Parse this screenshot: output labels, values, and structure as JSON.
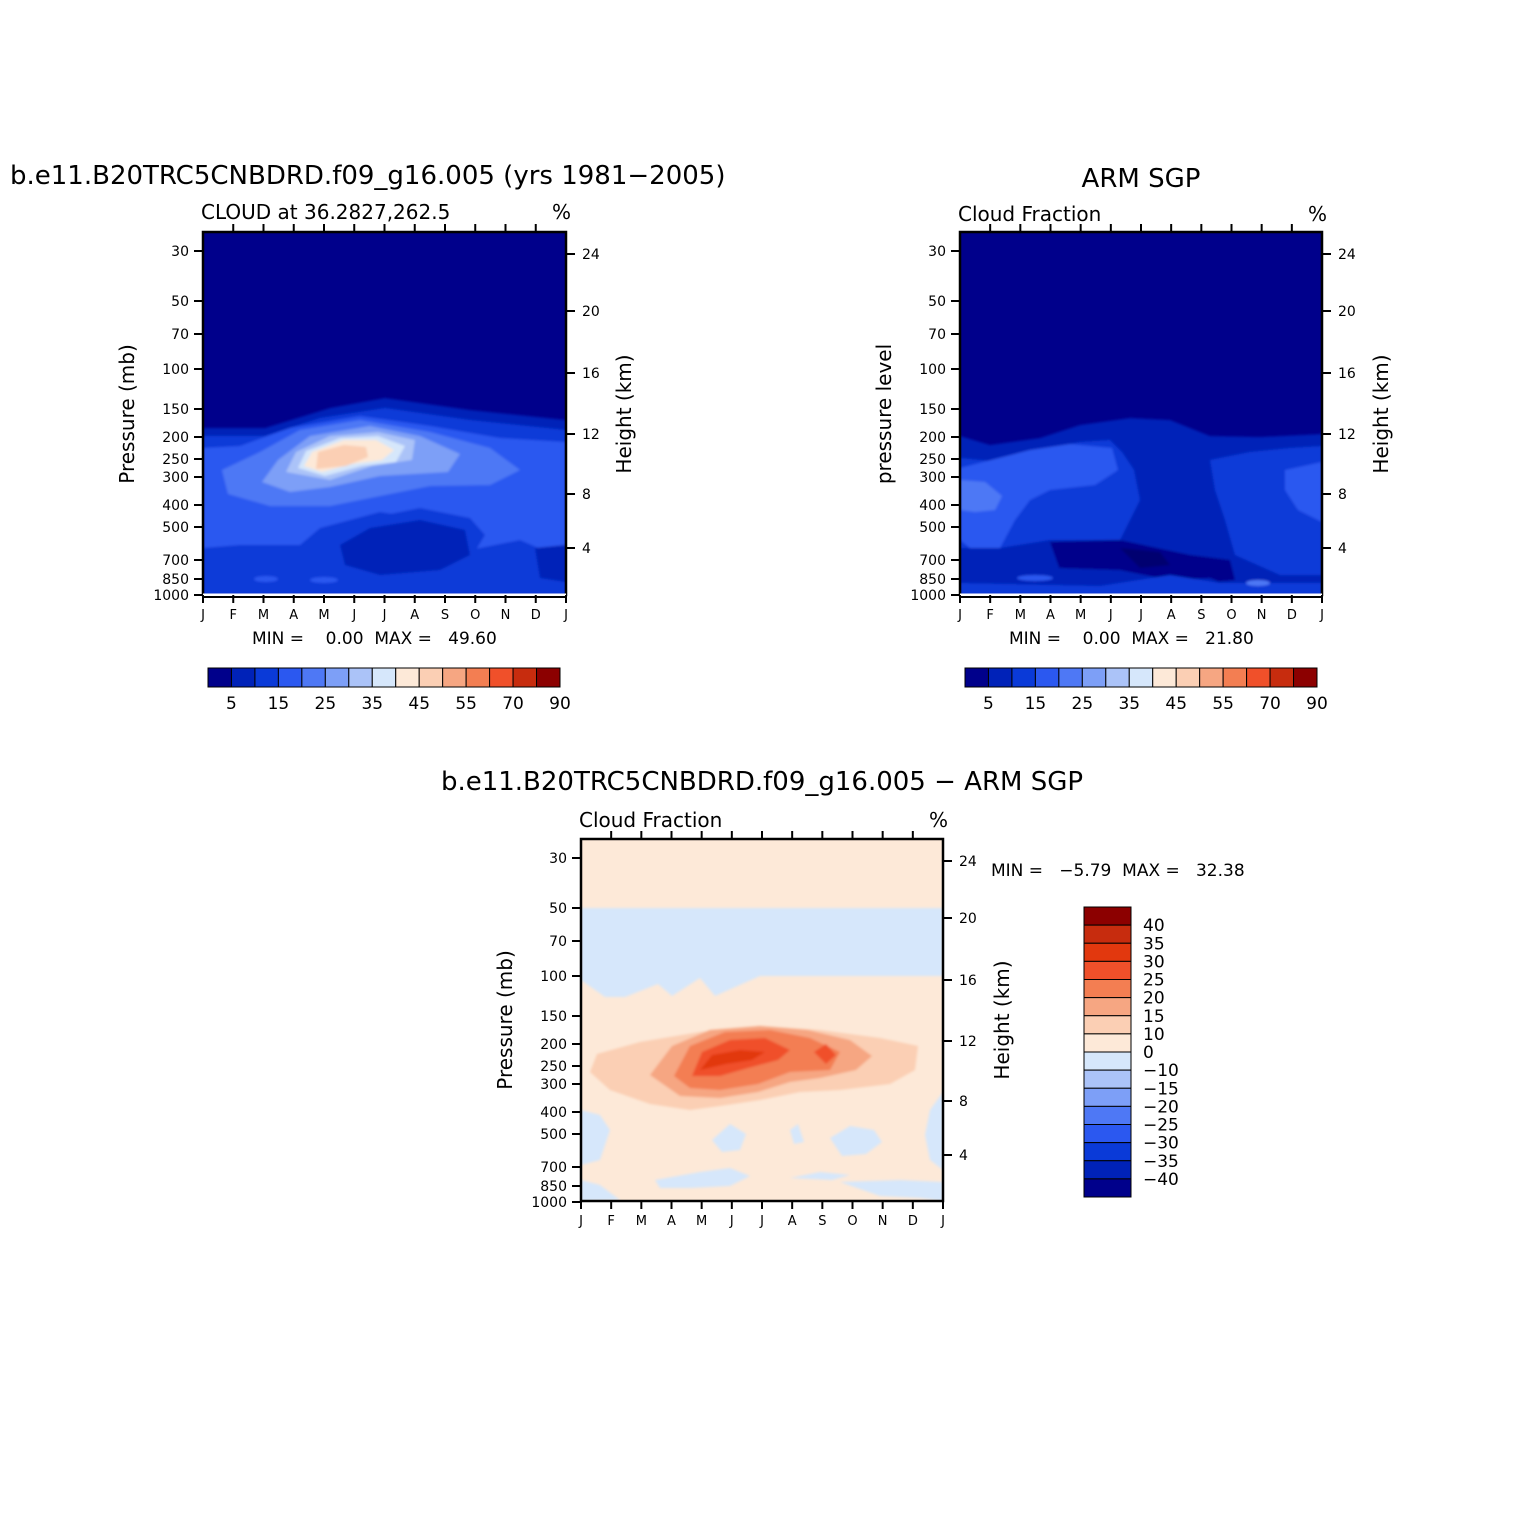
{
  "panels": [
    {
      "id": "model",
      "main_title": "b.e11.B20TRC5CNBDRD.f09_g16.005 (yrs 1981−2005)",
      "sub_left": "CLOUD at 36.2827,262.5",
      "sub_right": "%",
      "ylabel": "Pressure (mb)",
      "ylabel_right": "Height (km)",
      "stats": "MIN =    0.00  MAX =   49.60"
    },
    {
      "id": "obs",
      "main_title": "ARM SGP",
      "sub_left": "Cloud Fraction",
      "sub_right": "%",
      "ylabel": "pressure level",
      "ylabel_right": "Height (km)",
      "stats": "MIN =    0.00  MAX =   21.80"
    },
    {
      "id": "diff",
      "main_title": "b.e11.B20TRC5CNBDRD.f09_g16.005 − ARM SGP",
      "sub_left": "Cloud Fraction",
      "sub_right": "%",
      "ylabel": "Pressure (mb)",
      "ylabel_right": "Height (km)",
      "stats": "MIN =   −5.79  MAX =   32.38"
    }
  ],
  "axes": {
    "months": [
      "J",
      "F",
      "M",
      "A",
      "M",
      "J",
      "J",
      "A",
      "S",
      "O",
      "N",
      "D",
      "J"
    ],
    "pressure_ticks": [
      "30",
      "50",
      "70",
      "100",
      "150",
      "200",
      "250",
      "300",
      "400",
      "500",
      "700",
      "850",
      "1000"
    ],
    "height_ticks": [
      "24",
      "20",
      "16",
      "12",
      "8",
      "4"
    ]
  },
  "colorbars": {
    "cloud": {
      "labels": [
        "5",
        "15",
        "25",
        "35",
        "45",
        "55",
        "70",
        "90"
      ],
      "colors": [
        "#00008b",
        "#0022b8",
        "#0a3ad8",
        "#2b58f0",
        "#4e78f5",
        "#7d9ff7",
        "#abc3f8",
        "#d6e7fb",
        "#fde9d8",
        "#fbcfb4",
        "#f6a682",
        "#f37e52",
        "#f0502a",
        "#c72c0e",
        "#8c0000"
      ]
    },
    "diff": {
      "labels": [
        "40",
        "35",
        "30",
        "25",
        "20",
        "15",
        "10",
        "0",
        "−10",
        "−15",
        "−20",
        "−25",
        "−30",
        "−35",
        "−40"
      ],
      "colors": [
        "#8c0000",
        "#c72c0e",
        "#e2380e",
        "#f0502a",
        "#f37e52",
        "#f6a682",
        "#fbcfb4",
        "#fde9d8",
        "#d6e7fb",
        "#abc3f8",
        "#7d9ff7",
        "#4e78f5",
        "#2b58f0",
        "#0a3ad8",
        "#0022b8",
        "#00008b"
      ]
    }
  },
  "chart_data": [
    {
      "type": "heatmap",
      "title": "b.e11.B20TRC5CNBDRD.f09_g16.005 (yrs 1981−2005)",
      "subtitle": "CLOUD at 36.2827,262.5",
      "units": "%",
      "xlabel": "",
      "ylabel": "Pressure (mb)",
      "y_scale": "log",
      "x_categories": [
        "J",
        "F",
        "M",
        "A",
        "M",
        "J",
        "J",
        "A",
        "S",
        "O",
        "N",
        "D",
        "J"
      ],
      "min": 0.0,
      "max": 49.6,
      "description_values": {
        "peak_value_approx": 49.6,
        "peak_location": {
          "month": "May-Jun",
          "pressure_mb": 250
        }
      }
    },
    {
      "type": "heatmap",
      "title": "ARM SGP",
      "subtitle": "Cloud Fraction",
      "units": "%",
      "ylabel": "pressure level",
      "y_scale": "log",
      "x_categories": [
        "J",
        "F",
        "M",
        "A",
        "M",
        "J",
        "J",
        "A",
        "S",
        "O",
        "N",
        "D",
        "J"
      ],
      "min": 0.0,
      "max": 21.8
    },
    {
      "type": "heatmap",
      "title": "b.e11.B20TRC5CNBDRD.f09_g16.005 − ARM SGP",
      "subtitle": "Cloud Fraction",
      "units": "%",
      "ylabel": "Pressure (mb)",
      "y_scale": "log",
      "x_categories": [
        "J",
        "F",
        "M",
        "A",
        "M",
        "J",
        "J",
        "A",
        "S",
        "O",
        "N",
        "D",
        "J"
      ],
      "min": -5.79,
      "max": 32.38
    }
  ]
}
